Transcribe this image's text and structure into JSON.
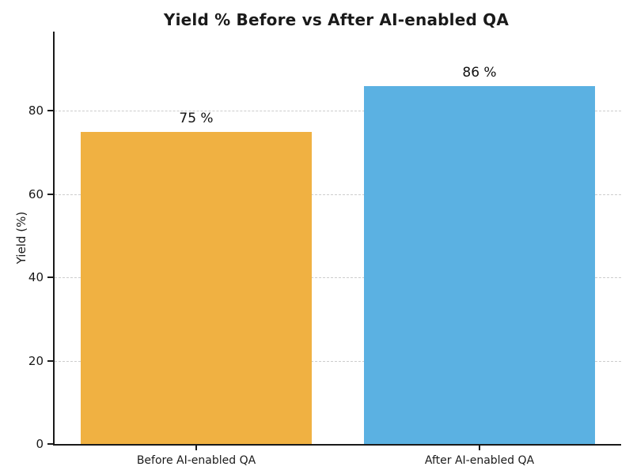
{
  "chart_data": {
    "type": "bar",
    "title": "Yield % Before vs After AI-enabled QA",
    "xlabel": "",
    "ylabel": "Yield (%)",
    "categories": [
      "Before AI-enabled QA",
      "After AI-enabled QA"
    ],
    "values": [
      75,
      86
    ],
    "value_labels": [
      "75 %",
      "86 %"
    ],
    "bar_colors": [
      "#F0B142",
      "#5BB1E2"
    ],
    "ylim": [
      0,
      99
    ],
    "yticks": [
      0,
      20,
      40,
      60,
      80
    ],
    "grid": "horizontal dashed gridlines at y ticks",
    "grid_color": "#cccccc",
    "axis_color": "#1a1a1a",
    "legend": "none",
    "background_color": "#ffffff"
  }
}
